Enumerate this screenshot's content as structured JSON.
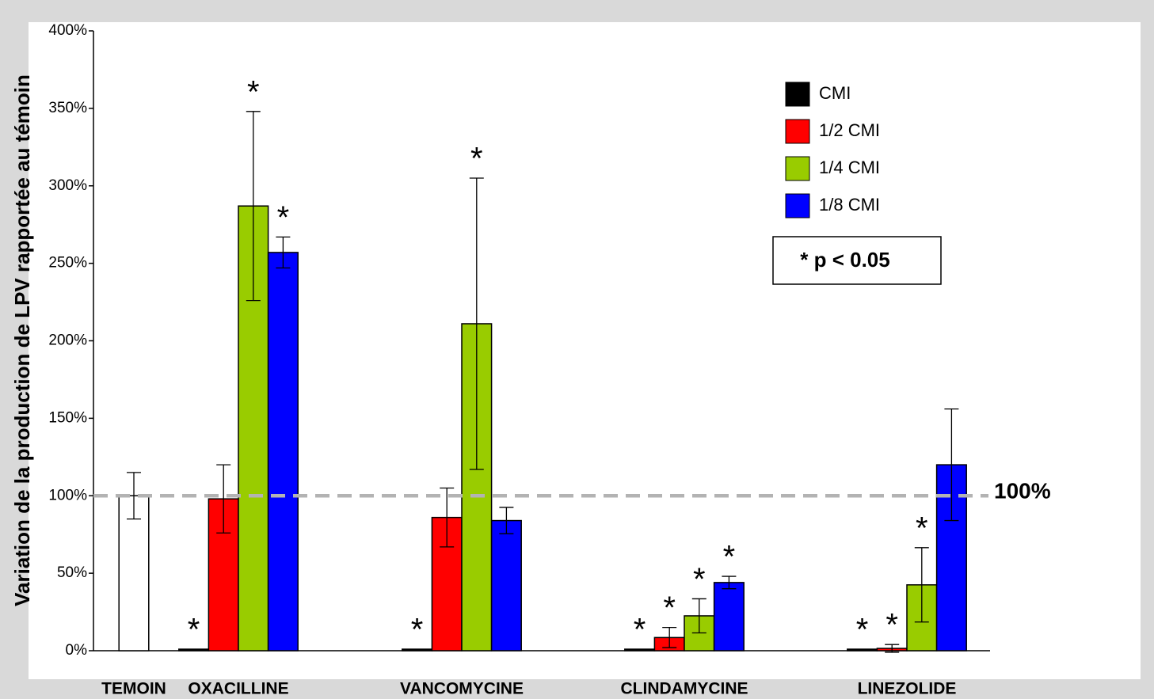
{
  "chart_data": {
    "type": "bar",
    "y_label": "Variation de la production de LPV rapportée au témoin",
    "categories": [
      "TEMOIN",
      "OXACILLINE",
      "VANCOMYCINE",
      "CLINDAMYCINE",
      "LINEZOLIDE"
    ],
    "control": {
      "value": 100,
      "error": 15,
      "color": "#ffffff"
    },
    "series": [
      {
        "name": "CMI",
        "color": "#000000",
        "values": [
          null,
          1,
          1,
          1,
          1
        ],
        "errors": [
          null,
          0,
          0,
          0,
          0
        ],
        "significant": [
          false,
          true,
          true,
          true,
          true
        ]
      },
      {
        "name": "1/2 CMI",
        "color": "#ff0000",
        "values": [
          null,
          98,
          86,
          8.5,
          1.5
        ],
        "errors": [
          null,
          22,
          19,
          6.5,
          2.5
        ],
        "significant": [
          false,
          false,
          false,
          true,
          true
        ]
      },
      {
        "name": "1/4 CMI",
        "color": "#99cc00",
        "values": [
          null,
          287,
          211,
          22.5,
          42.5
        ],
        "errors": [
          null,
          61,
          94,
          11,
          24
        ],
        "significant": [
          false,
          true,
          true,
          true,
          true
        ]
      },
      {
        "name": "1/8 CMI",
        "color": "#0000ff",
        "values": [
          null,
          257,
          84,
          44,
          120
        ],
        "errors": [
          null,
          10,
          8.5,
          4,
          36
        ],
        "significant": [
          false,
          true,
          false,
          true,
          false
        ]
      }
    ],
    "star_label": "*",
    "significance_note": "* p < 0.05",
    "reference_line": {
      "value": 100,
      "label": "100%",
      "color": "#b3b3b3"
    },
    "ylim": [
      0,
      400
    ],
    "yticks": [
      {
        "value": 0,
        "label": "0%"
      },
      {
        "value": 50,
        "label": "50%"
      },
      {
        "value": 100,
        "label": "100%"
      },
      {
        "value": 150,
        "label": "150%"
      },
      {
        "value": 200,
        "label": "200%"
      },
      {
        "value": 250,
        "label": "250%"
      },
      {
        "value": 300,
        "label": "300%"
      },
      {
        "value": 350,
        "label": "350%"
      },
      {
        "value": 400,
        "label": "400%"
      }
    ]
  }
}
